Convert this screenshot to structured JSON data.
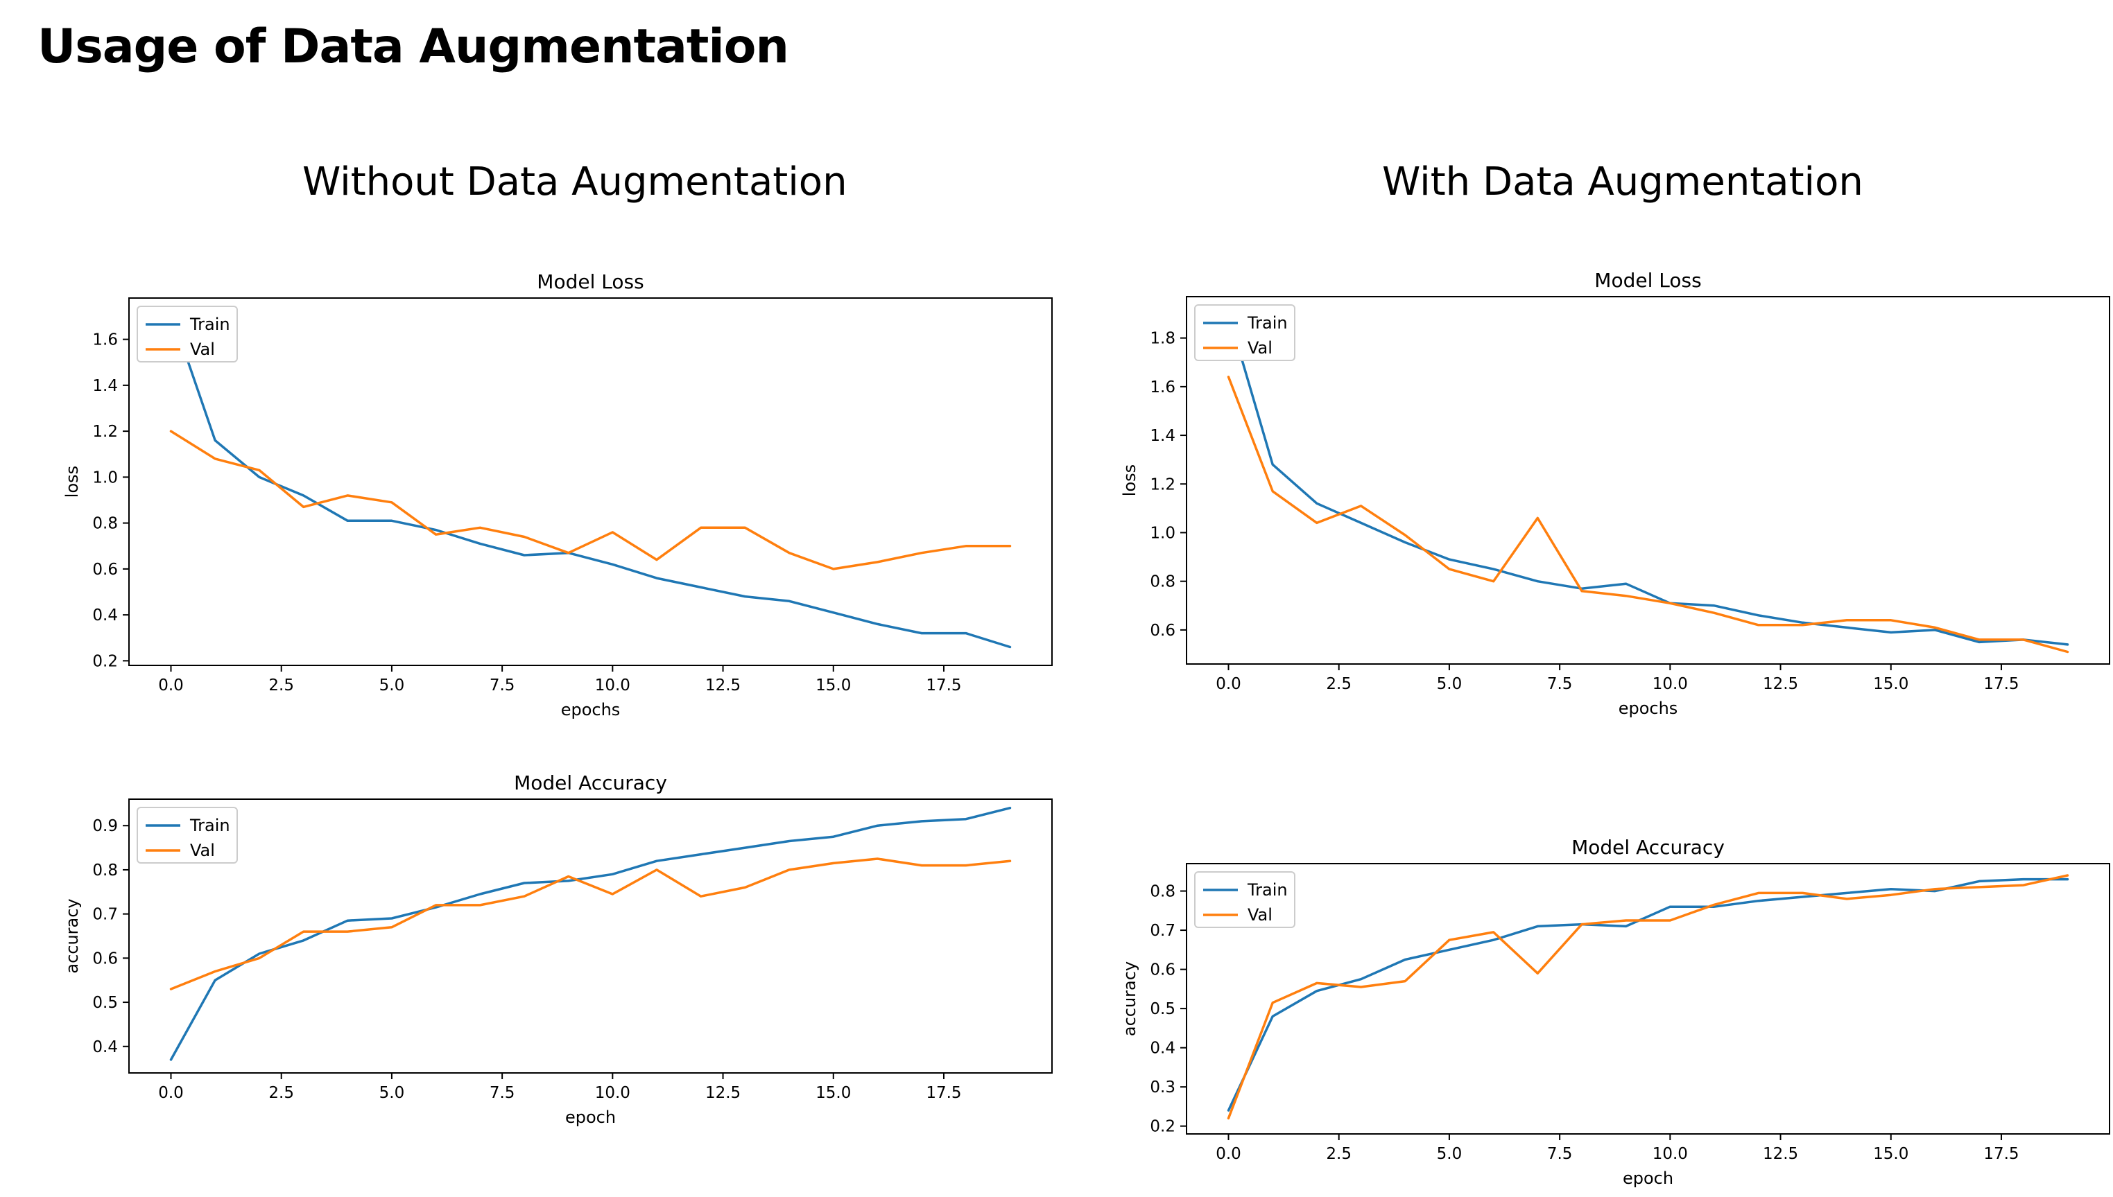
{
  "page": {
    "title": "Usage of Data Augmentation",
    "left_heading": "Without Data Augmentation",
    "right_heading": "With Data Augmentation"
  },
  "colors": {
    "train": "#1f77b4",
    "val": "#ff7f0e"
  },
  "chart_data": [
    {
      "id": "loss-without",
      "type": "line",
      "title": "Model Loss",
      "xlabel": "epochs",
      "ylabel": "loss",
      "xlim": [
        -0.95,
        19.95
      ],
      "ylim": [
        0.18,
        1.78
      ],
      "xticks": [
        0,
        2.5,
        5,
        7.5,
        10,
        12.5,
        15,
        17.5
      ],
      "xtick_labels": [
        "0.0",
        "2.5",
        "5.0",
        "7.5",
        "10.0",
        "12.5",
        "15.0",
        "17.5"
      ],
      "yticks": [
        0.2,
        0.4,
        0.6,
        0.8,
        1.0,
        1.2,
        1.4,
        1.6
      ],
      "ytick_labels": [
        "0.2",
        "0.4",
        "0.6",
        "0.8",
        "1.0",
        "1.2",
        "1.4",
        "1.6"
      ],
      "legend": "top-left",
      "x": [
        0,
        1,
        2,
        3,
        4,
        5,
        6,
        7,
        8,
        9,
        10,
        11,
        12,
        13,
        14,
        15,
        16,
        17,
        18,
        19
      ],
      "series": [
        {
          "name": "Train",
          "color": "#1f77b4",
          "values": [
            1.72,
            1.16,
            1.0,
            0.92,
            0.81,
            0.81,
            0.77,
            0.71,
            0.66,
            0.67,
            0.62,
            0.56,
            0.52,
            0.48,
            0.46,
            0.41,
            0.36,
            0.32,
            0.32,
            0.26
          ]
        },
        {
          "name": "Val",
          "color": "#ff7f0e",
          "values": [
            1.2,
            1.08,
            1.03,
            0.87,
            0.92,
            0.89,
            0.75,
            0.78,
            0.74,
            0.67,
            0.76,
            0.64,
            0.78,
            0.78,
            0.67,
            0.6,
            0.63,
            0.67,
            0.7,
            0.7
          ]
        }
      ]
    },
    {
      "id": "accuracy-without",
      "type": "line",
      "title": "Model Accuracy",
      "xlabel": "epoch",
      "ylabel": "accuracy",
      "xlim": [
        -0.95,
        19.95
      ],
      "ylim": [
        0.34,
        0.96
      ],
      "xticks": [
        0,
        2.5,
        5,
        7.5,
        10,
        12.5,
        15,
        17.5
      ],
      "xtick_labels": [
        "0.0",
        "2.5",
        "5.0",
        "7.5",
        "10.0",
        "12.5",
        "15.0",
        "17.5"
      ],
      "yticks": [
        0.4,
        0.5,
        0.6,
        0.7,
        0.8,
        0.9
      ],
      "ytick_labels": [
        "0.4",
        "0.5",
        "0.6",
        "0.7",
        "0.8",
        "0.9"
      ],
      "legend": "top-left",
      "x": [
        0,
        1,
        2,
        3,
        4,
        5,
        6,
        7,
        8,
        9,
        10,
        11,
        12,
        13,
        14,
        15,
        16,
        17,
        18,
        19
      ],
      "series": [
        {
          "name": "Train",
          "color": "#1f77b4",
          "values": [
            0.37,
            0.55,
            0.61,
            0.64,
            0.685,
            0.69,
            0.715,
            0.745,
            0.77,
            0.775,
            0.79,
            0.82,
            0.835,
            0.85,
            0.865,
            0.875,
            0.9,
            0.91,
            0.915,
            0.94
          ]
        },
        {
          "name": "Val",
          "color": "#ff7f0e",
          "values": [
            0.53,
            0.57,
            0.6,
            0.66,
            0.66,
            0.67,
            0.72,
            0.72,
            0.74,
            0.785,
            0.745,
            0.8,
            0.74,
            0.76,
            0.8,
            0.815,
            0.825,
            0.81,
            0.81,
            0.82
          ]
        }
      ]
    },
    {
      "id": "loss-with",
      "type": "line",
      "title": "Model Loss",
      "xlabel": "epochs",
      "ylabel": "loss",
      "xlim": [
        -0.95,
        19.95
      ],
      "ylim": [
        0.46,
        1.97
      ],
      "xticks": [
        0,
        2.5,
        5,
        7.5,
        10,
        12.5,
        15,
        17.5
      ],
      "xtick_labels": [
        "0.0",
        "2.5",
        "5.0",
        "7.5",
        "10.0",
        "12.5",
        "15.0",
        "17.5"
      ],
      "yticks": [
        0.6,
        0.8,
        1.0,
        1.2,
        1.4,
        1.6,
        1.8
      ],
      "ytick_labels": [
        "0.6",
        "0.8",
        "1.0",
        "1.2",
        "1.4",
        "1.6",
        "1.8"
      ],
      "legend": "top-left",
      "x": [
        0,
        1,
        2,
        3,
        4,
        5,
        6,
        7,
        8,
        9,
        10,
        11,
        12,
        13,
        14,
        15,
        16,
        17,
        18,
        19
      ],
      "series": [
        {
          "name": "Train",
          "color": "#1f77b4",
          "values": [
            1.9,
            1.28,
            1.12,
            1.04,
            0.96,
            0.89,
            0.85,
            0.8,
            0.77,
            0.79,
            0.71,
            0.7,
            0.66,
            0.63,
            0.61,
            0.59,
            0.6,
            0.55,
            0.56,
            0.54
          ]
        },
        {
          "name": "Val",
          "color": "#ff7f0e",
          "values": [
            1.64,
            1.17,
            1.04,
            1.11,
            0.99,
            0.85,
            0.8,
            1.06,
            0.76,
            0.74,
            0.71,
            0.67,
            0.62,
            0.62,
            0.64,
            0.64,
            0.61,
            0.56,
            0.56,
            0.51
          ]
        }
      ]
    },
    {
      "id": "accuracy-with",
      "type": "line",
      "title": "Model Accuracy",
      "xlabel": "epoch",
      "ylabel": "accuracy",
      "xlim": [
        -0.95,
        19.95
      ],
      "ylim": [
        0.18,
        0.87
      ],
      "xticks": [
        0,
        2.5,
        5,
        7.5,
        10,
        12.5,
        15,
        17.5
      ],
      "xtick_labels": [
        "0.0",
        "2.5",
        "5.0",
        "7.5",
        "10.0",
        "12.5",
        "15.0",
        "17.5"
      ],
      "yticks": [
        0.2,
        0.3,
        0.4,
        0.5,
        0.6,
        0.7,
        0.8
      ],
      "ytick_labels": [
        "0.2",
        "0.3",
        "0.4",
        "0.5",
        "0.6",
        "0.7",
        "0.8"
      ],
      "legend": "top-left",
      "x": [
        0,
        1,
        2,
        3,
        4,
        5,
        6,
        7,
        8,
        9,
        10,
        11,
        12,
        13,
        14,
        15,
        16,
        17,
        18,
        19
      ],
      "series": [
        {
          "name": "Train",
          "color": "#1f77b4",
          "values": [
            0.24,
            0.48,
            0.545,
            0.575,
            0.625,
            0.65,
            0.675,
            0.71,
            0.715,
            0.71,
            0.76,
            0.76,
            0.775,
            0.785,
            0.795,
            0.805,
            0.8,
            0.825,
            0.83,
            0.83
          ]
        },
        {
          "name": "Val",
          "color": "#ff7f0e",
          "values": [
            0.22,
            0.515,
            0.565,
            0.555,
            0.57,
            0.675,
            0.695,
            0.59,
            0.715,
            0.725,
            0.725,
            0.765,
            0.795,
            0.795,
            0.78,
            0.79,
            0.805,
            0.81,
            0.815,
            0.84
          ]
        }
      ]
    }
  ]
}
